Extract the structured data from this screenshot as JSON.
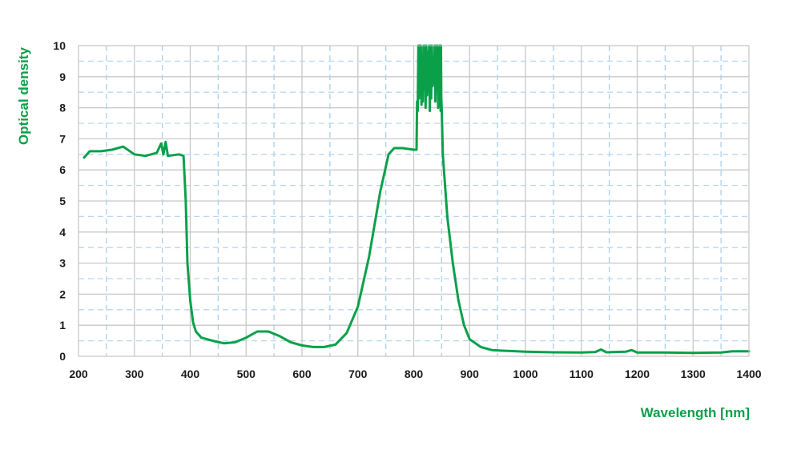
{
  "chart_data": {
    "type": "line",
    "xlabel": "Wavelength [nm]",
    "ylabel": "Optical density",
    "xlim": [
      200,
      1400
    ],
    "ylim": [
      0,
      10
    ],
    "x_ticks": [
      "200",
      "300",
      "400",
      "500",
      "600",
      "700",
      "800",
      "900",
      "1000",
      "1100",
      "1200",
      "1300",
      "1400"
    ],
    "y_ticks": [
      "0",
      "1",
      "2",
      "3",
      "4",
      "5",
      "6",
      "7",
      "8",
      "9",
      "10"
    ],
    "grid": true,
    "line_color": "#0aa04a",
    "series": [
      {
        "x": [
          210,
          220,
          240,
          260,
          280,
          300,
          320,
          340,
          348,
          352,
          356,
          360,
          380,
          388,
          392,
          395,
          400,
          405,
          410,
          420,
          440,
          460,
          480,
          500,
          520,
          540,
          560,
          580,
          600,
          620,
          640,
          660,
          680,
          700,
          720,
          740,
          755,
          765,
          780,
          800,
          805,
          806,
          815,
          825,
          835,
          845,
          850,
          852,
          856,
          860,
          870,
          880,
          890,
          900,
          920,
          940,
          960,
          1000,
          1050,
          1100,
          1125,
          1135,
          1145,
          1160,
          1180,
          1190,
          1200,
          1250,
          1300,
          1350,
          1370,
          1400
        ],
        "y": [
          6.4,
          6.6,
          6.6,
          6.65,
          6.75,
          6.5,
          6.45,
          6.55,
          6.85,
          6.5,
          6.9,
          6.45,
          6.5,
          6.45,
          5.0,
          3.0,
          1.8,
          1.1,
          0.8,
          0.6,
          0.5,
          0.42,
          0.45,
          0.6,
          0.8,
          0.8,
          0.65,
          0.45,
          0.35,
          0.3,
          0.3,
          0.38,
          0.75,
          1.6,
          3.2,
          5.3,
          6.5,
          6.7,
          6.7,
          6.65,
          6.65,
          8.2,
          9.5,
          9.8,
          9.2,
          9.7,
          8.0,
          6.5,
          5.5,
          4.5,
          3.0,
          1.8,
          1.0,
          0.55,
          0.3,
          0.2,
          0.18,
          0.15,
          0.13,
          0.12,
          0.14,
          0.22,
          0.13,
          0.14,
          0.15,
          0.2,
          0.12,
          0.12,
          0.11,
          0.12,
          0.16,
          0.16
        ]
      }
    ]
  }
}
